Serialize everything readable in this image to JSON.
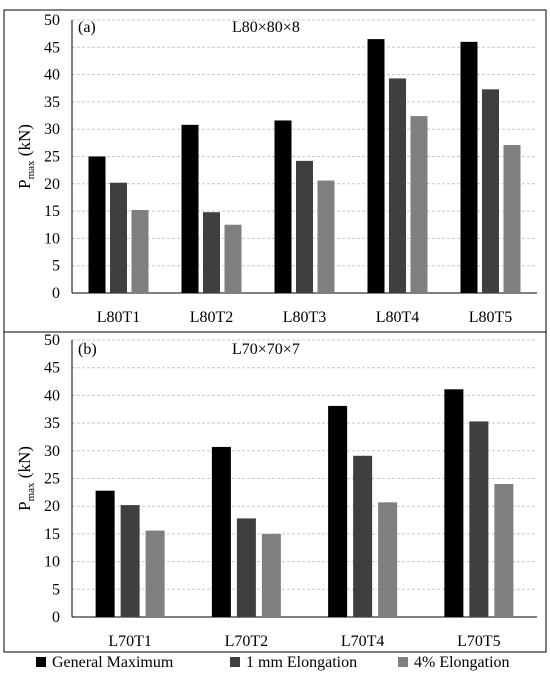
{
  "chart_data": [
    {
      "type": "bar",
      "panel_label": "(a)",
      "title": "L80×80×8",
      "ylabel_main": "P",
      "ylabel_sub": "max",
      "ylabel_unit": " (kN)",
      "ylim": [
        0,
        50
      ],
      "ytick_step": 5,
      "grid": true,
      "categories": [
        "L80T1",
        "L80T2",
        "L80T3",
        "L80T4",
        "L80T5"
      ],
      "series": [
        {
          "name": "General Maximum",
          "color": "#000000",
          "values": [
            25.0,
            30.8,
            31.6,
            46.5,
            46.0
          ]
        },
        {
          "name": "1 mm Elongation",
          "color": "#3f3f3f",
          "values": [
            20.2,
            14.8,
            24.2,
            39.3,
            37.3
          ]
        },
        {
          "name": "4% Elongation",
          "color": "#7f7f7f",
          "values": [
            15.2,
            12.5,
            20.6,
            32.4,
            27.1
          ]
        }
      ]
    },
    {
      "type": "bar",
      "panel_label": "(b)",
      "title": "L70×70×7",
      "ylabel_main": "P",
      "ylabel_sub": "max",
      "ylabel_unit": " (kN)",
      "ylim": [
        0,
        50
      ],
      "ytick_step": 5,
      "grid": true,
      "categories": [
        "L70T1",
        "L70T2",
        "L70T4",
        "L70T5"
      ],
      "series": [
        {
          "name": "General Maximum",
          "color": "#000000",
          "values": [
            22.8,
            30.7,
            38.1,
            41.1
          ]
        },
        {
          "name": "1 mm Elongation",
          "color": "#3f3f3f",
          "values": [
            20.2,
            17.8,
            29.1,
            35.3
          ]
        },
        {
          "name": "4% Elongation",
          "color": "#7f7f7f",
          "values": [
            15.6,
            15.0,
            20.7,
            24.0
          ]
        }
      ]
    }
  ],
  "legend": {
    "placement": "bottom",
    "items": [
      {
        "label": "General Maximum",
        "color": "#000000"
      },
      {
        "label": "1 mm Elongation",
        "color": "#3f3f3f"
      },
      {
        "label": "4% Elongation",
        "color": "#7f7f7f"
      }
    ]
  }
}
